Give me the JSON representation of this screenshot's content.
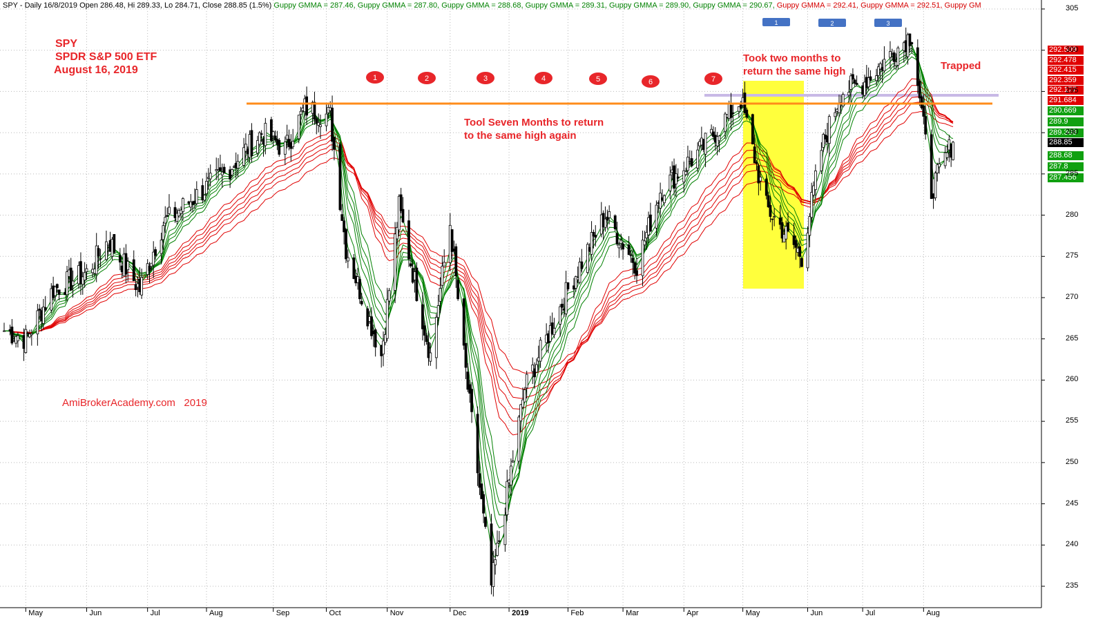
{
  "header": {
    "base": "SPY - Daily 16/8/2019 Open 286.48, Hi 289.33, Lo 284.71, Close 288.85 (1.5%)",
    "green": [
      "Guppy GMMA = 287.46,",
      "Guppy GMMA = 287.80,",
      "Guppy GMMA = 288.68,",
      "Guppy GMMA = 289.31,",
      "Guppy GMMA = 289.90,",
      "Guppy GMMA = 290.67,"
    ],
    "red": [
      "Guppy GMMA = 292.41,",
      "Guppy GMMA = 292.51,",
      "Guppy GM"
    ]
  },
  "ticker": {
    "symbol": "SPY",
    "name": "SPDR S&P 500 ETF",
    "date": "August 16, 2019"
  },
  "watermark": "AmiBrokerAcademy.com   2019",
  "annotations": {
    "seven_months_line1": "Tool Seven Months to return",
    "seven_months_line2": "to the same high again",
    "two_months_line1": "Took two months to",
    "two_months_line2": "return the same high",
    "trapped": "Trapped"
  },
  "markers_red": [
    "1",
    "2",
    "3",
    "4",
    "5",
    "6",
    "7"
  ],
  "markers_blue": [
    "1",
    "2",
    "3"
  ],
  "price_tags": {
    "red": [
      "292.509",
      "292.478",
      "292.415",
      "292.359",
      "292.177",
      "291.684"
    ],
    "green": [
      "290.669",
      "289.9",
      "289.308",
      "288.68",
      "287.8",
      "287.456"
    ],
    "close": "288.85"
  },
  "colors": {
    "short_mas": "#008000",
    "long_mas": "#e00000",
    "resistance": "#ff8c1a",
    "highlight": "#ffff3c",
    "annotation": "#e8262a",
    "marker_red": "#e8262a",
    "marker_blue": "#4472c4"
  },
  "chart_data": {
    "type": "candlestick",
    "y_ticks": [
      "305",
      "300",
      "295",
      "290",
      "285",
      "280",
      "275",
      "270",
      "265",
      "260",
      "255",
      "250",
      "245",
      "240",
      "235"
    ],
    "ylim": [
      233,
      306
    ],
    "x_ticks": [
      "May",
      "Jun",
      "Jul",
      "Aug",
      "Sep",
      "Oct",
      "Nov",
      "Dec",
      "2019",
      "Feb",
      "Mar",
      "Apr",
      "May",
      "Jun",
      "Jul",
      "Aug"
    ],
    "resistance_level": 293.8,
    "close": 288.85,
    "price_path": [
      [
        "2018-04-20",
        266
      ],
      [
        "2018-05-01",
        265
      ],
      [
        "2018-05-15",
        271
      ],
      [
        "2018-06-01",
        273
      ],
      [
        "2018-06-12",
        277
      ],
      [
        "2018-06-28",
        271
      ],
      [
        "2018-07-10",
        279
      ],
      [
        "2018-07-25",
        282
      ],
      [
        "2018-08-10",
        285
      ],
      [
        "2018-08-29",
        290
      ],
      [
        "2018-09-10",
        288
      ],
      [
        "2018-09-20",
        293
      ],
      [
        "2018-10-03",
        292
      ],
      [
        "2018-10-11",
        276
      ],
      [
        "2018-10-29",
        263
      ],
      [
        "2018-11-07",
        281
      ],
      [
        "2018-11-23",
        263
      ],
      [
        "2018-12-03",
        279
      ],
      [
        "2018-12-10",
        263
      ],
      [
        "2018-12-24",
        235
      ],
      [
        "2019-01-10",
        259
      ],
      [
        "2019-02-01",
        271
      ],
      [
        "2019-02-20",
        280
      ],
      [
        "2019-03-08",
        274
      ],
      [
        "2019-03-20",
        283
      ],
      [
        "2019-04-10",
        288
      ],
      [
        "2019-04-30",
        294
      ],
      [
        "2019-05-13",
        281
      ],
      [
        "2019-05-31",
        275
      ],
      [
        "2019-06-10",
        288
      ],
      [
        "2019-06-20",
        295
      ],
      [
        "2019-07-01",
        296
      ],
      [
        "2019-07-26",
        302
      ],
      [
        "2019-08-05",
        283
      ],
      [
        "2019-08-16",
        289
      ]
    ]
  }
}
